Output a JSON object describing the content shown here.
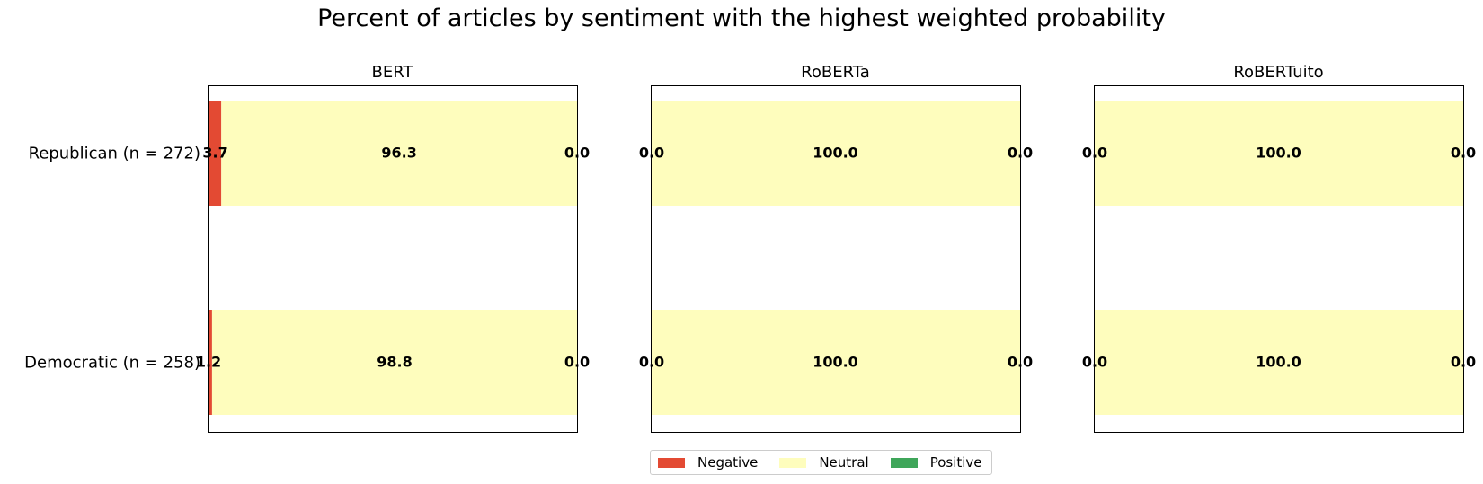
{
  "chart_data": {
    "type": "bar",
    "orientation": "horizontal-stacked",
    "title": "Percent of articles by sentiment with the highest weighted probability",
    "categories": [
      "Republican (n = 272)",
      "Democratic (n = 258)"
    ],
    "xlim": [
      0,
      100
    ],
    "grid": false,
    "legend_position": "bottom-center",
    "series_colors": {
      "Negative": "#e34a33",
      "Neutral": "#fefdbd",
      "Positive": "#3fa65a"
    },
    "panels": [
      {
        "title": "BERT",
        "series": [
          {
            "name": "Negative",
            "values": [
              3.7,
              1.2
            ],
            "labels": [
              "3.7",
              "1.2"
            ]
          },
          {
            "name": "Neutral",
            "values": [
              96.3,
              98.8
            ],
            "labels": [
              "96.3",
              "98.8"
            ]
          },
          {
            "name": "Positive",
            "values": [
              0.0,
              0.0
            ],
            "labels": [
              "0.0",
              "0.0"
            ]
          }
        ]
      },
      {
        "title": "RoBERTa",
        "series": [
          {
            "name": "Negative",
            "values": [
              0.0,
              0.0
            ],
            "labels": [
              "0.0",
              "0.0"
            ]
          },
          {
            "name": "Neutral",
            "values": [
              100.0,
              100.0
            ],
            "labels": [
              "100.0",
              "100.0"
            ]
          },
          {
            "name": "Positive",
            "values": [
              0.0,
              0.0
            ],
            "labels": [
              "0.0",
              "0.0"
            ]
          }
        ]
      },
      {
        "title": "RoBERTuito",
        "series": [
          {
            "name": "Negative",
            "values": [
              0.0,
              0.0
            ],
            "labels": [
              "0.0",
              "0.0"
            ]
          },
          {
            "name": "Neutral",
            "values": [
              100.0,
              100.0
            ],
            "labels": [
              "100.0",
              "100.0"
            ]
          },
          {
            "name": "Positive",
            "values": [
              0.0,
              0.0
            ],
            "labels": [
              "0.0",
              "0.0"
            ]
          }
        ]
      }
    ]
  },
  "legend": {
    "items": [
      {
        "label": "Negative",
        "color": "#e34a33"
      },
      {
        "label": "Neutral",
        "color": "#fefdbd"
      },
      {
        "label": "Positive",
        "color": "#3fa65a"
      }
    ]
  }
}
